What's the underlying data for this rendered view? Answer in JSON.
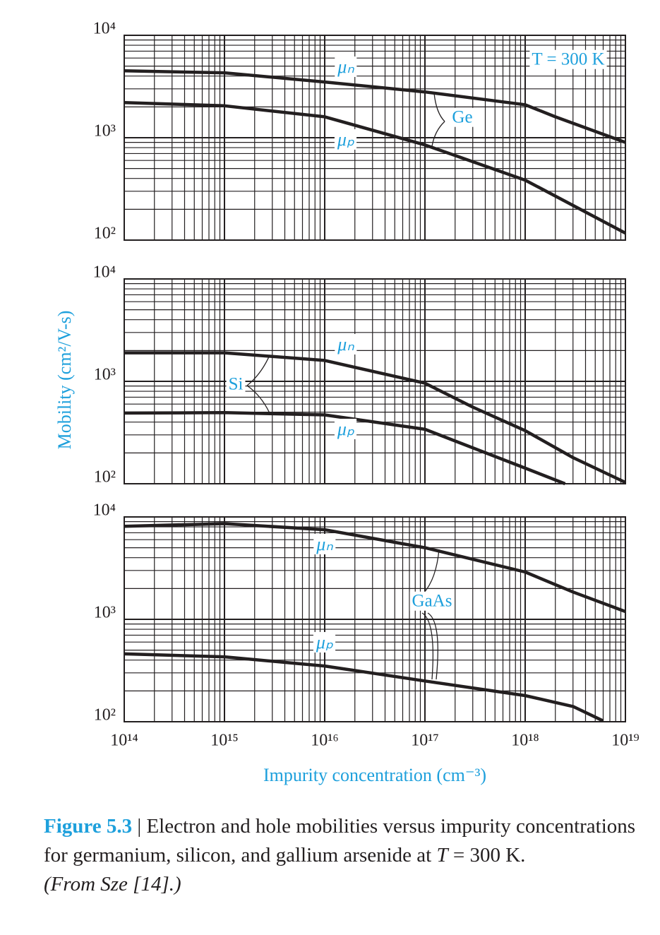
{
  "chart_data": [
    {
      "type": "line",
      "xscale": "log",
      "yscale": "log",
      "grid": true,
      "minor_grid": true,
      "xlim": [
        100000000000000.0,
        1e+19
      ],
      "xticks": [
        100000000000000.0,
        1000000000000000.0,
        1e+16,
        1e+17,
        1e+18,
        1e+19
      ],
      "ylim": [
        100,
        10000
      ],
      "yticks": [
        {
          "value": 100,
          "label": "10²"
        },
        {
          "value": 1000,
          "label": "10³"
        },
        {
          "value": 10000,
          "label": "10⁴"
        }
      ],
      "series": [
        {
          "name": "μₙ",
          "color": "#231f20",
          "x": [
            100000000000000.0,
            1000000000000000.0,
            1e+16,
            1e+17,
            1e+18,
            2e+18,
            1e+19
          ],
          "values": [
            4500,
            4300,
            3500,
            2800,
            2100,
            1600,
            900
          ]
        },
        {
          "name": "μₚ",
          "color": "#231f20",
          "x": [
            100000000000000.0,
            1000000000000000.0,
            1e+16,
            1e+17,
            1e+18,
            1e+19
          ],
          "values": [
            2200,
            2050,
            1600,
            850,
            385,
            117
          ]
        }
      ],
      "annotations": [
        "Ge",
        "T = 300 K"
      ]
    },
    {
      "type": "line",
      "xscale": "log",
      "yscale": "log",
      "grid": true,
      "minor_grid": true,
      "xlim": [
        100000000000000.0,
        1e+19
      ],
      "xticks": [
        100000000000000.0,
        1000000000000000.0,
        1e+16,
        1e+17,
        1e+18,
        1e+19
      ],
      "ylim": [
        100,
        10000
      ],
      "yticks": [
        {
          "value": 100,
          "label": "10²"
        },
        {
          "value": 1000,
          "label": "10³"
        },
        {
          "value": 10000,
          "label": "10⁴"
        }
      ],
      "ylabel": "Mobility (cm²/V-s)",
      "series": [
        {
          "name": "μₙ",
          "color": "#231f20",
          "x": [
            100000000000000.0,
            1000000000000000.0,
            1e+16,
            1e+17,
            3e+17,
            1e+18,
            3e+18,
            1e+19
          ],
          "values": [
            1900,
            1900,
            1600,
            960,
            560,
            330,
            180,
            103
          ]
        },
        {
          "name": "μₚ",
          "color": "#231f20",
          "x": [
            100000000000000.0,
            1000000000000000.0,
            1e+16,
            1e+17,
            1e+18,
            2.5e+18
          ],
          "values": [
            490,
            495,
            470,
            340,
            142,
            100
          ]
        }
      ],
      "annotations": [
        "Si"
      ]
    },
    {
      "type": "line",
      "xscale": "log",
      "yscale": "log",
      "grid": true,
      "minor_grid": true,
      "xlim": [
        100000000000000.0,
        1e+19
      ],
      "xticks": [
        {
          "value": 100000000000000.0,
          "label": "10¹⁴"
        },
        {
          "value": 1000000000000000.0,
          "label": "10¹⁵"
        },
        {
          "value": 1e+16,
          "label": "10¹⁶"
        },
        {
          "value": 1e+17,
          "label": "10¹⁷"
        },
        {
          "value": 1e+18,
          "label": "10¹⁸"
        },
        {
          "value": 1e+19,
          "label": "10¹⁹"
        }
      ],
      "ylim": [
        100,
        10000
      ],
      "yticks": [
        {
          "value": 100,
          "label": "10²"
        },
        {
          "value": 1000,
          "label": "10³"
        },
        {
          "value": 10000,
          "label": "10⁴"
        }
      ],
      "xlabel": "Impurity concentration (cm⁻³)",
      "series": [
        {
          "name": "μₙ",
          "color": "#231f20",
          "x": [
            100000000000000.0,
            1000000000000000.0,
            1e+16,
            1e+17,
            1e+18,
            3e+18,
            1e+19
          ],
          "values": [
            8100,
            8600,
            7500,
            5000,
            2900,
            1850,
            1190
          ]
        },
        {
          "name": "μₚ",
          "color": "#231f20",
          "x": [
            100000000000000.0,
            1000000000000000.0,
            1e+16,
            1e+17,
            1e+18,
            3e+18,
            6e+18
          ],
          "values": [
            460,
            430,
            350,
            250,
            180,
            141,
            102
          ]
        }
      ],
      "annotations": [
        "GaAs"
      ]
    }
  ],
  "caption": {
    "label": "Figure 5.3",
    "separator": "|",
    "text": "Electron and hole mobilities versus impurity concentrations for germanium, silicon, and gallium arsenide at ",
    "variable": "T",
    "text_end": " = 300 K.",
    "source": "(From Sze [14].)"
  }
}
